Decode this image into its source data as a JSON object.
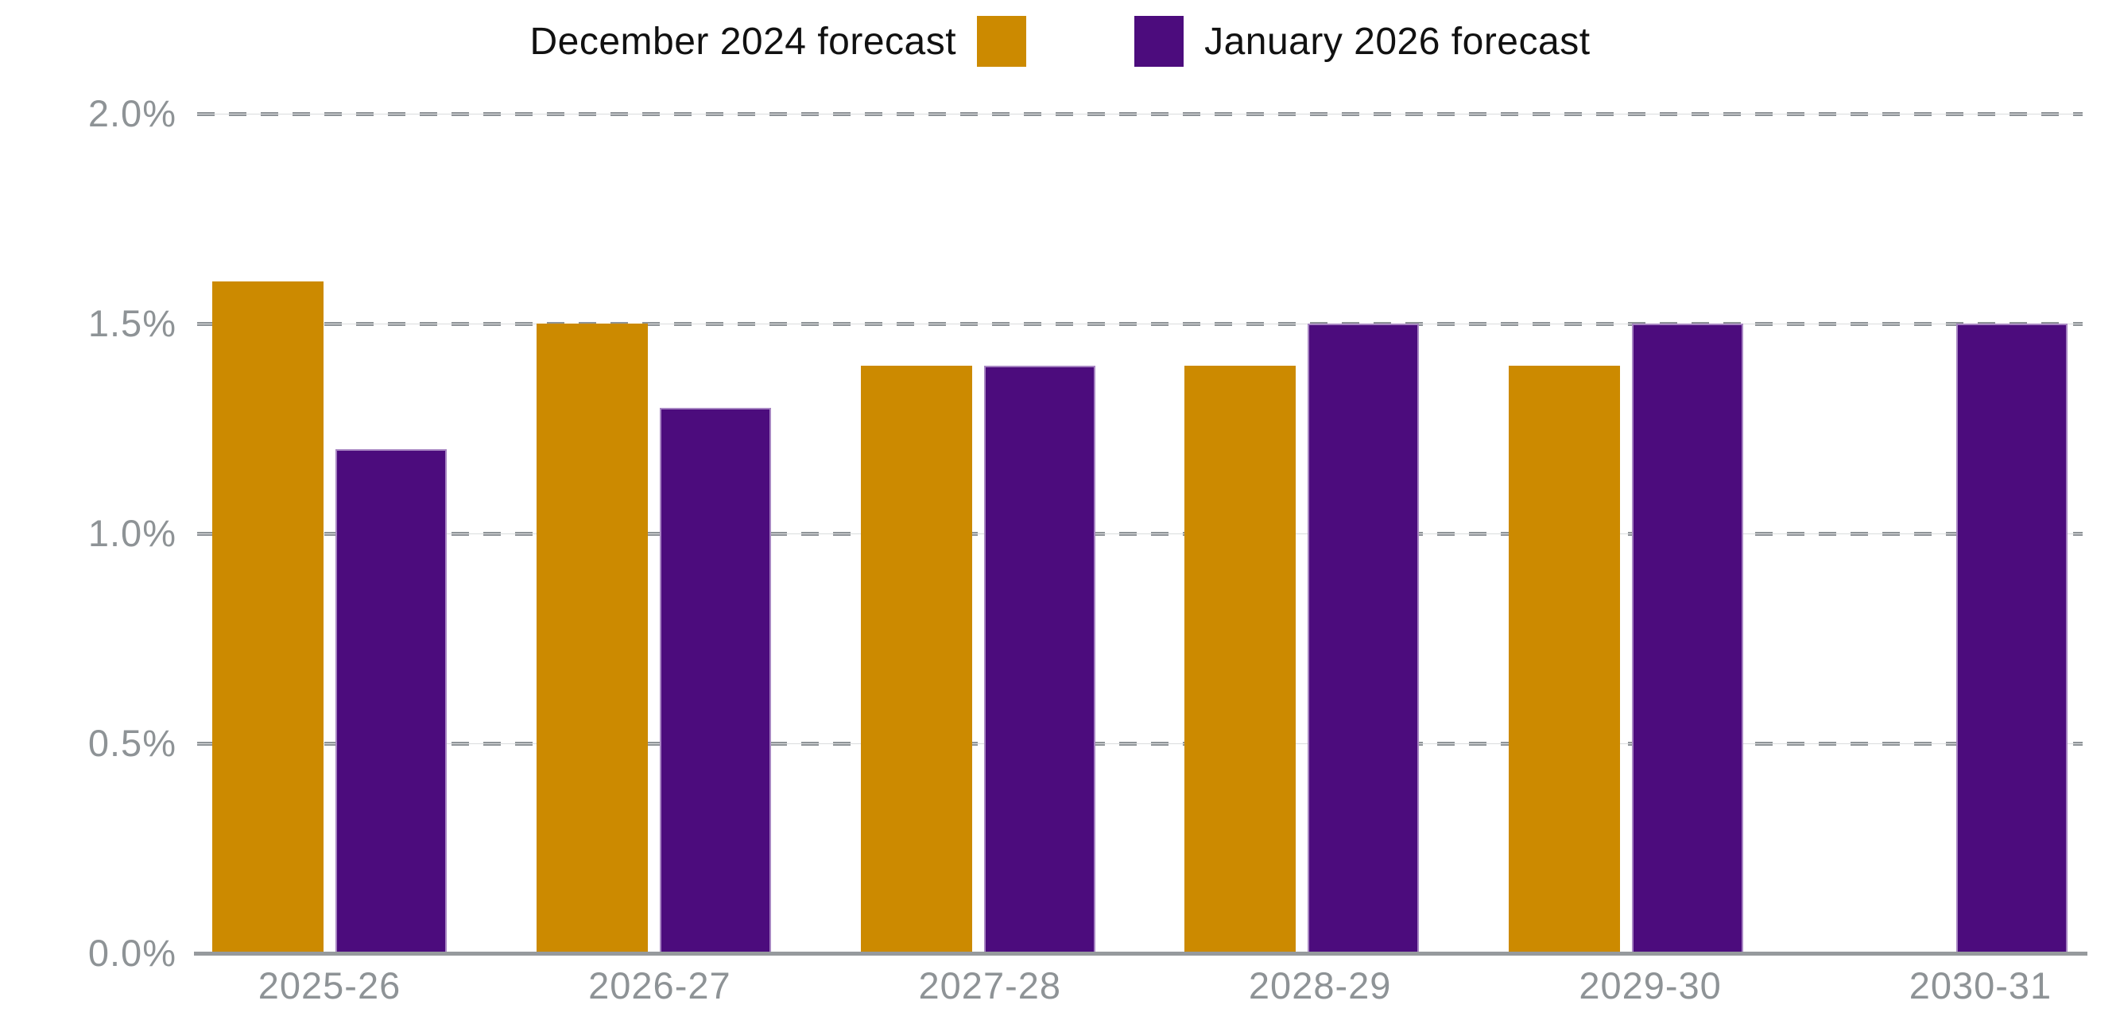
{
  "legend": {
    "items": [
      {
        "label": "December 2024 forecast",
        "color": "#CC8A00"
      },
      {
        "label": "January 2026 forecast",
        "color": "#4C0C7D"
      }
    ],
    "position": "top center"
  },
  "chart_data": {
    "type": "bar",
    "title": "",
    "xlabel": "",
    "ylabel": "",
    "unit": "%",
    "categories": [
      "2025-26",
      "2026-27",
      "2027-28",
      "2028-29",
      "2029-30",
      "2030-31"
    ],
    "series": [
      {
        "name": "December 2024 forecast",
        "color": "#CC8A00",
        "values": [
          1.6,
          1.5,
          1.4,
          1.4,
          1.4,
          null
        ]
      },
      {
        "name": "January 2026 forecast",
        "color": "#4C0C7D",
        "values": [
          1.2,
          1.3,
          1.4,
          1.5,
          1.5,
          1.5
        ]
      }
    ],
    "ylim": [
      0,
      2
    ],
    "yticks": [
      {
        "value": 2.0,
        "label": "2.0%"
      },
      {
        "value": 1.5,
        "label": "1.5%"
      },
      {
        "value": 1.0,
        "label": "1.0%"
      },
      {
        "value": 0.5,
        "label": "0.5%"
      },
      {
        "value": 0.0,
        "label": "0.0%"
      }
    ],
    "grid": "horizontal dashed",
    "legend_position": "top center"
  },
  "colors": {
    "axis_text": "#8E9396",
    "grid_dash": "#8F9498",
    "grid_faint_line": "#DADCDD",
    "baseline": "#969A9D",
    "legend_text": "#111111",
    "purple_bar_stroke": "#C5ADD8",
    "background": "#FFFFFF"
  }
}
